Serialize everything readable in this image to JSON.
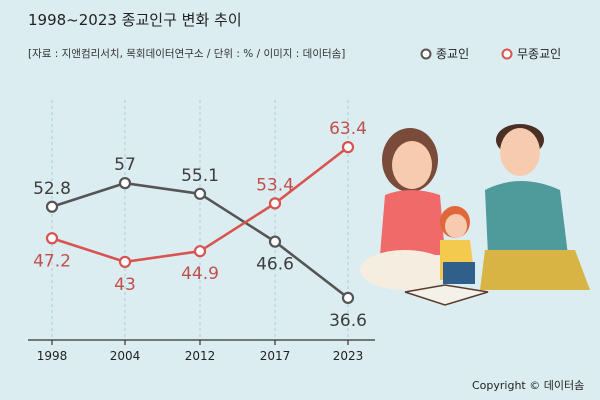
{
  "title": "1998~2023 종교인구 변화 추이",
  "source": "[자료 : 지앤컴리서치, 목회데이터연구소 / 단위 : % / 이미지 : 데이터솜]",
  "copyright": "Copyright © 데이터솜",
  "colors": {
    "background": "#dcedf1",
    "religious": "#555555",
    "nonreligious": "#d9534f",
    "label_religious": "#3d3d3d",
    "label_nonreligious": "#c0504d",
    "gridline": "#a8cfd6"
  },
  "chart_data": {
    "type": "line",
    "x": [
      "1998",
      "2004",
      "2012",
      "2017",
      "2023"
    ],
    "series": [
      {
        "name": "종교인",
        "values": [
          52.8,
          57,
          55.1,
          46.6,
          36.6
        ]
      },
      {
        "name": "무종교인",
        "values": [
          47.2,
          43,
          44.9,
          53.4,
          63.4
        ]
      }
    ],
    "ylim": [
      30,
      70
    ],
    "legend_position": "top-right",
    "grid": "vertical dashed"
  }
}
